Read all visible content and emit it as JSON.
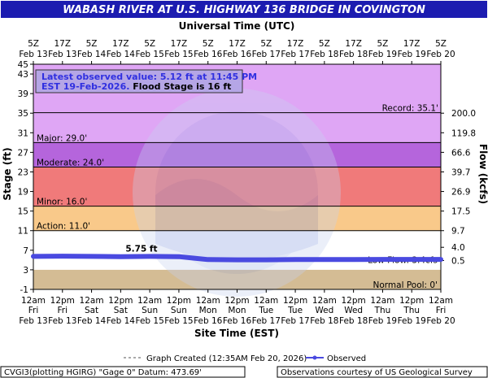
{
  "header": {
    "title": "WABASH RIVER AT U.S. HIGHWAY 136 BRIDGE IN COVINGTON",
    "top_axis_title": "Universal Time (UTC)"
  },
  "colors": {
    "title_bar": "#1c1cb0",
    "record": "#e8a4f8",
    "major": "#b86fe0",
    "moderate": "#f08080",
    "minor": "#f4cccc",
    "action": "#fbd08c",
    "normal": "#ffffff",
    "low": "#d4bc94",
    "observed": "#4a4ae0"
  },
  "info_box": {
    "line1": "Latest observed value: 5.12 ft at 11:45 PM",
    "line2_blue": "EST 19-Feb-2026.",
    "line2_black": " Flood Stage is 16 ft"
  },
  "flood_zones": [
    {
      "name": "record",
      "label": "Record: 35.1'",
      "value": 35.1
    },
    {
      "name": "major",
      "label": "Major: 29.0'",
      "value": 29.0
    },
    {
      "name": "moderate",
      "label": "Moderate: 24.0'",
      "value": 24.0
    },
    {
      "name": "minor",
      "label": "Minor: 16.0'",
      "value": 16.0
    },
    {
      "name": "action",
      "label": "Action: 11.0'",
      "value": 11.0
    },
    {
      "name": "normal_pool",
      "label": "Normal Pool: 0'",
      "value": 0
    }
  ],
  "obscured_label": "Low Flow: 3.4cfs",
  "point_label": "5.75 ft",
  "footer": {
    "legend_created": "Graph Created (12:35AM Feb 20, 2026)",
    "legend_observed": "Observed",
    "datum": "CVGI3(plotting HGIRG) \"Gage 0\" Datum: 473.69'",
    "credit": "Observations courtesy of US Geological Survey"
  },
  "chart_data": {
    "type": "line",
    "title": "WABASH RIVER AT U.S. HIGHWAY 136 BRIDGE IN COVINGTON",
    "xlabel": "Site Time (EST)",
    "x2label": "Universal Time (UTC)",
    "ylabel": "Stage (ft)",
    "y2label": "Flow (kcfs)",
    "ylim": [
      -1,
      45
    ],
    "xlim_hours_from_Feb13_12am_EST": [
      0,
      168
    ],
    "grid": false,
    "y_ticks": [
      -1,
      3,
      7,
      11,
      15,
      19,
      23,
      27,
      31,
      35,
      39,
      43,
      45
    ],
    "flow_ticks": [
      {
        "stage": 4.9,
        "label": "0.5"
      },
      {
        "stage": 7.6,
        "label": "4.0"
      },
      {
        "stage": 11.0,
        "label": "9.7"
      },
      {
        "stage": 15.0,
        "label": "17.5"
      },
      {
        "stage": 19.0,
        "label": "26.9"
      },
      {
        "stage": 23.0,
        "label": "39.7"
      },
      {
        "stage": 27.0,
        "label": "66.6"
      },
      {
        "stage": 31.0,
        "label": "119.8"
      },
      {
        "stage": 35.0,
        "label": "200.0"
      }
    ],
    "x_ticks_bottom": [
      {
        "line1": "12am",
        "line2": "Fri",
        "line3": "Feb 13"
      },
      {
        "line1": "12pm",
        "line2": "Fri",
        "line3": "Feb 13"
      },
      {
        "line1": "12am",
        "line2": "Sat",
        "line3": "Feb 14"
      },
      {
        "line1": "12pm",
        "line2": "Sat",
        "line3": "Feb 14"
      },
      {
        "line1": "12am",
        "line2": "Sun",
        "line3": "Feb 15"
      },
      {
        "line1": "12pm",
        "line2": "Sun",
        "line3": "Feb 15"
      },
      {
        "line1": "12am",
        "line2": "Mon",
        "line3": "Feb 16"
      },
      {
        "line1": "12pm",
        "line2": "Mon",
        "line3": "Feb 16"
      },
      {
        "line1": "12am",
        "line2": "Tue",
        "line3": "Feb 17"
      },
      {
        "line1": "12pm",
        "line2": "Tue",
        "line3": "Feb 17"
      },
      {
        "line1": "12am",
        "line2": "Wed",
        "line3": "Feb 18"
      },
      {
        "line1": "12pm",
        "line2": "Wed",
        "line3": "Feb 18"
      },
      {
        "line1": "12am",
        "line2": "Thu",
        "line3": "Feb 19"
      },
      {
        "line1": "12pm",
        "line2": "Thu",
        "line3": "Feb 19"
      },
      {
        "line1": "12am",
        "line2": "Fri",
        "line3": "Feb 20"
      }
    ],
    "x_ticks_top": [
      {
        "line1": "5Z",
        "line2": "Feb 13"
      },
      {
        "line1": "17Z",
        "line2": "Feb 13"
      },
      {
        "line1": "5Z",
        "line2": "Feb 14"
      },
      {
        "line1": "17Z",
        "line2": "Feb 14"
      },
      {
        "line1": "5Z",
        "line2": "Feb 15"
      },
      {
        "line1": "17Z",
        "line2": "Feb 15"
      },
      {
        "line1": "5Z",
        "line2": "Feb 16"
      },
      {
        "line1": "17Z",
        "line2": "Feb 16"
      },
      {
        "line1": "5Z",
        "line2": "Feb 17"
      },
      {
        "line1": "17Z",
        "line2": "Feb 17"
      },
      {
        "line1": "5Z",
        "line2": "Feb 18"
      },
      {
        "line1": "17Z",
        "line2": "Feb 18"
      },
      {
        "line1": "5Z",
        "line2": "Feb 19"
      },
      {
        "line1": "17Z",
        "line2": "Feb 19"
      },
      {
        "line1": "5Z",
        "line2": "Feb 20"
      }
    ],
    "series": [
      {
        "name": "Observed",
        "x_hours": [
          0,
          12,
          24,
          36,
          48,
          60,
          66,
          72,
          84,
          96,
          108,
          120,
          132,
          144,
          156,
          168
        ],
        "y": [
          5.75,
          5.8,
          5.75,
          5.7,
          5.75,
          5.7,
          5.4,
          5.1,
          5.05,
          5.05,
          5.1,
          5.1,
          5.1,
          5.12,
          5.12,
          5.12
        ]
      }
    ]
  }
}
